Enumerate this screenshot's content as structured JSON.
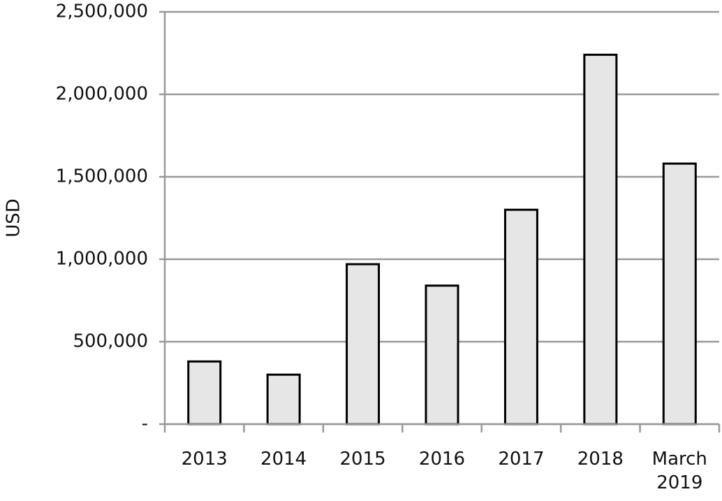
{
  "chart_data": {
    "type": "bar",
    "y_label": "USD",
    "categories": [
      "2013",
      "2014",
      "2015",
      "2016",
      "2017",
      "2018",
      "March 2019"
    ],
    "values": [
      380000,
      300000,
      970000,
      840000,
      1300000,
      2240000,
      1580000
    ],
    "color": "#e6e6e6",
    "ylim": [
      0,
      2500000
    ],
    "yticks": [
      {
        "value": 0,
        "label": "-"
      },
      {
        "value": 500000,
        "label": "500,000"
      },
      {
        "value": 1000000,
        "label": "1,000,000"
      },
      {
        "value": 1500000,
        "label": "1,500,000"
      },
      {
        "value": 2000000,
        "label": "2,000,000"
      },
      {
        "value": 2500000,
        "label": "2,500,000"
      }
    ],
    "grid": true
  }
}
